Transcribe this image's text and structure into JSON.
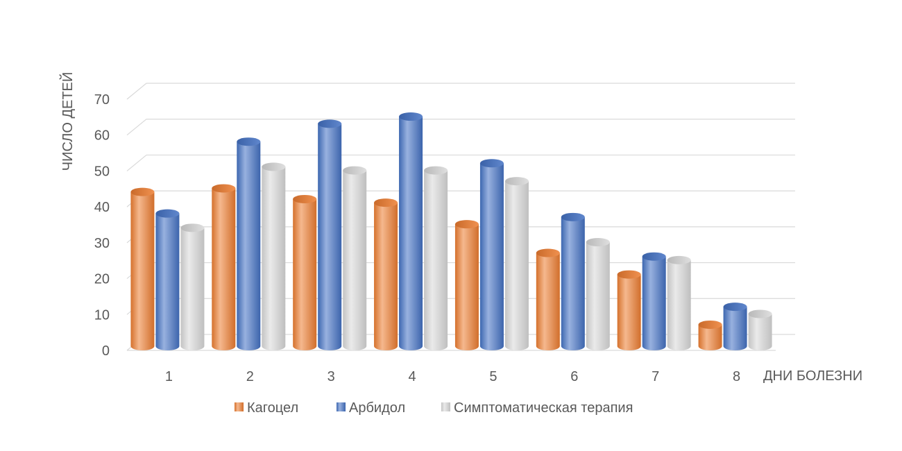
{
  "chart_data": {
    "type": "bar",
    "title": "",
    "xlabel": "ДНИ БОЛЕЗНИ",
    "ylabel": "ЧИСЛО ДЕТЕЙ",
    "ylim": [
      0,
      70
    ],
    "yticks": [
      0,
      10,
      20,
      30,
      40,
      50,
      60,
      70
    ],
    "categories": [
      "1",
      "2",
      "3",
      "4",
      "5",
      "6",
      "7",
      "8"
    ],
    "series": [
      {
        "name": "Кагоцел",
        "values": [
          43,
          44,
          41,
          40,
          34,
          26,
          20,
          6
        ],
        "color": "#ED7D31"
      },
      {
        "name": "Арбидол",
        "values": [
          37,
          57,
          62,
          64,
          51,
          36,
          25,
          11
        ],
        "color": "#4472C4"
      },
      {
        "name": "Симптоматическая терапия",
        "values": [
          33,
          50,
          49,
          49,
          46,
          29,
          24,
          9
        ],
        "color": "#D9D9D9"
      }
    ],
    "grid": true,
    "legend_position": "bottom",
    "style": "3d-cylinder"
  }
}
